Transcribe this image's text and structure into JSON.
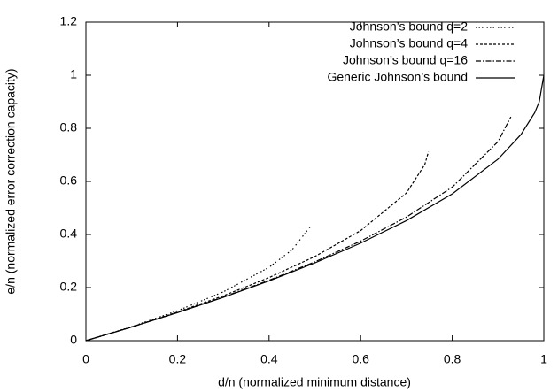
{
  "chart_data": {
    "type": "line",
    "x_label": "d/n (normalized minimum distance)",
    "y_label": "e/n (normalized error correction capacity)",
    "xlim": [
      0,
      1
    ],
    "ylim": [
      0,
      1.2
    ],
    "xticks": [
      0,
      0.2,
      0.4,
      0.6,
      0.8,
      1
    ],
    "yticks": [
      0,
      0.2,
      0.4,
      0.6,
      0.8,
      1,
      1.2
    ],
    "legend": "top-right",
    "series": [
      {
        "name": "Johnson’s bound q=2",
        "color": "#000000",
        "dash": "1.5 2 1.5 2 1.5 4",
        "x": [
          0,
          0.1,
          0.2,
          0.3,
          0.4,
          0.45,
          0.49
        ],
        "values": [
          0,
          0.0528,
          0.1127,
          0.1838,
          0.2764,
          0.3419,
          0.4293
        ]
      },
      {
        "name": "Johnson’s bound q=4",
        "color": "#000000",
        "dash": "3 2",
        "x": [
          0,
          0.1,
          0.2,
          0.3,
          0.4,
          0.5,
          0.6,
          0.7,
          0.74,
          0.748
        ],
        "values": [
          0,
          0.0518,
          0.1077,
          0.169,
          0.2377,
          0.317,
          0.4146,
          0.5563,
          0.6634,
          0.7113
        ]
      },
      {
        "name": "Johnson’s bound q=16",
        "color": "#000000",
        "dash": "6 2 1.5 2",
        "x": [
          0,
          0.1,
          0.2,
          0.3,
          0.4,
          0.5,
          0.6,
          0.7,
          0.8,
          0.9,
          0.928
        ],
        "values": [
          0,
          0.0514,
          0.106,
          0.1644,
          0.2276,
          0.2971,
          0.375,
          0.4656,
          0.5784,
          0.75,
          0.843
        ]
      },
      {
        "name": "Generic Johnson’s bound",
        "color": "#000000",
        "dash": "none",
        "x": [
          0,
          0.1,
          0.2,
          0.3,
          0.4,
          0.5,
          0.6,
          0.7,
          0.8,
          0.9,
          0.95,
          0.98,
          0.99,
          1
        ],
        "values": [
          0,
          0.0513,
          0.1056,
          0.1633,
          0.2254,
          0.2929,
          0.3675,
          0.4523,
          0.5528,
          0.6838,
          0.7764,
          0.8586,
          0.9,
          1
        ]
      }
    ]
  }
}
